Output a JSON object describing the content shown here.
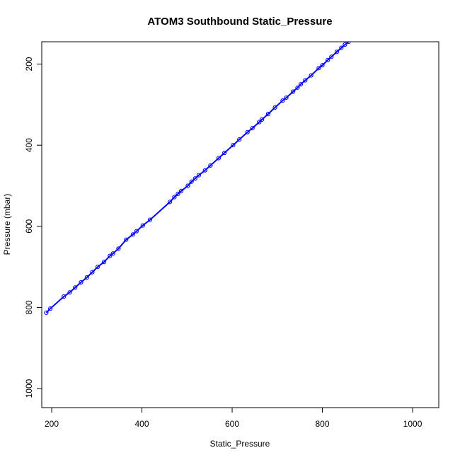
{
  "chart_data": {
    "type": "scatter",
    "title": "ATOM3 Southbound Static_Pressure",
    "xlabel": "Static_Pressure",
    "ylabel": "Pressure (mbar)",
    "xlim": [
      178,
      1058
    ],
    "ylim": [
      1047,
      145
    ],
    "y_axis_reversed": true,
    "x_ticks": [
      200,
      400,
      600,
      800,
      1000
    ],
    "x_tick_labels": [
      "200",
      "400",
      "600",
      "800",
      "1000"
    ],
    "y_ticks": [
      200,
      400,
      600,
      800,
      1000
    ],
    "y_tick_labels": [
      "200",
      "400",
      "600",
      "800",
      "1000"
    ],
    "grid": false,
    "legend": "none",
    "colors": {
      "series": "#0000ff",
      "axes": "#000000"
    },
    "series": [
      {
        "line": true,
        "points": [
          [
            188,
            813
          ],
          [
            197,
            803
          ],
          [
            227,
            773
          ],
          [
            240,
            763
          ],
          [
            252,
            751
          ],
          [
            265,
            738
          ],
          [
            278,
            726
          ],
          [
            290,
            713
          ],
          [
            302,
            700
          ],
          [
            316,
            688
          ],
          [
            329,
            673
          ],
          [
            336,
            667
          ],
          [
            348,
            655
          ],
          [
            365,
            633
          ],
          [
            380,
            620
          ],
          [
            388,
            612
          ],
          [
            402,
            598
          ],
          [
            418,
            584
          ],
          [
            462,
            540
          ],
          [
            472,
            528
          ],
          [
            480,
            520
          ],
          [
            487,
            513
          ],
          [
            502,
            500
          ],
          [
            510,
            490
          ],
          [
            518,
            482
          ],
          [
            526,
            474
          ],
          [
            540,
            462
          ],
          [
            552,
            450
          ],
          [
            570,
            432
          ],
          [
            583,
            419
          ],
          [
            602,
            400
          ],
          [
            616,
            386
          ],
          [
            634,
            368
          ],
          [
            645,
            358
          ],
          [
            660,
            343
          ],
          [
            666,
            337
          ],
          [
            680,
            323
          ],
          [
            695,
            307
          ],
          [
            712,
            290
          ],
          [
            720,
            283
          ],
          [
            735,
            268
          ],
          [
            745,
            258
          ],
          [
            752,
            250
          ],
          [
            762,
            240
          ],
          [
            775,
            228
          ],
          [
            792,
            210
          ],
          [
            800,
            203
          ],
          [
            812,
            190
          ],
          [
            820,
            182
          ],
          [
            832,
            170
          ],
          [
            842,
            160
          ],
          [
            850,
            152
          ],
          [
            858,
            145
          ]
        ]
      }
    ]
  }
}
